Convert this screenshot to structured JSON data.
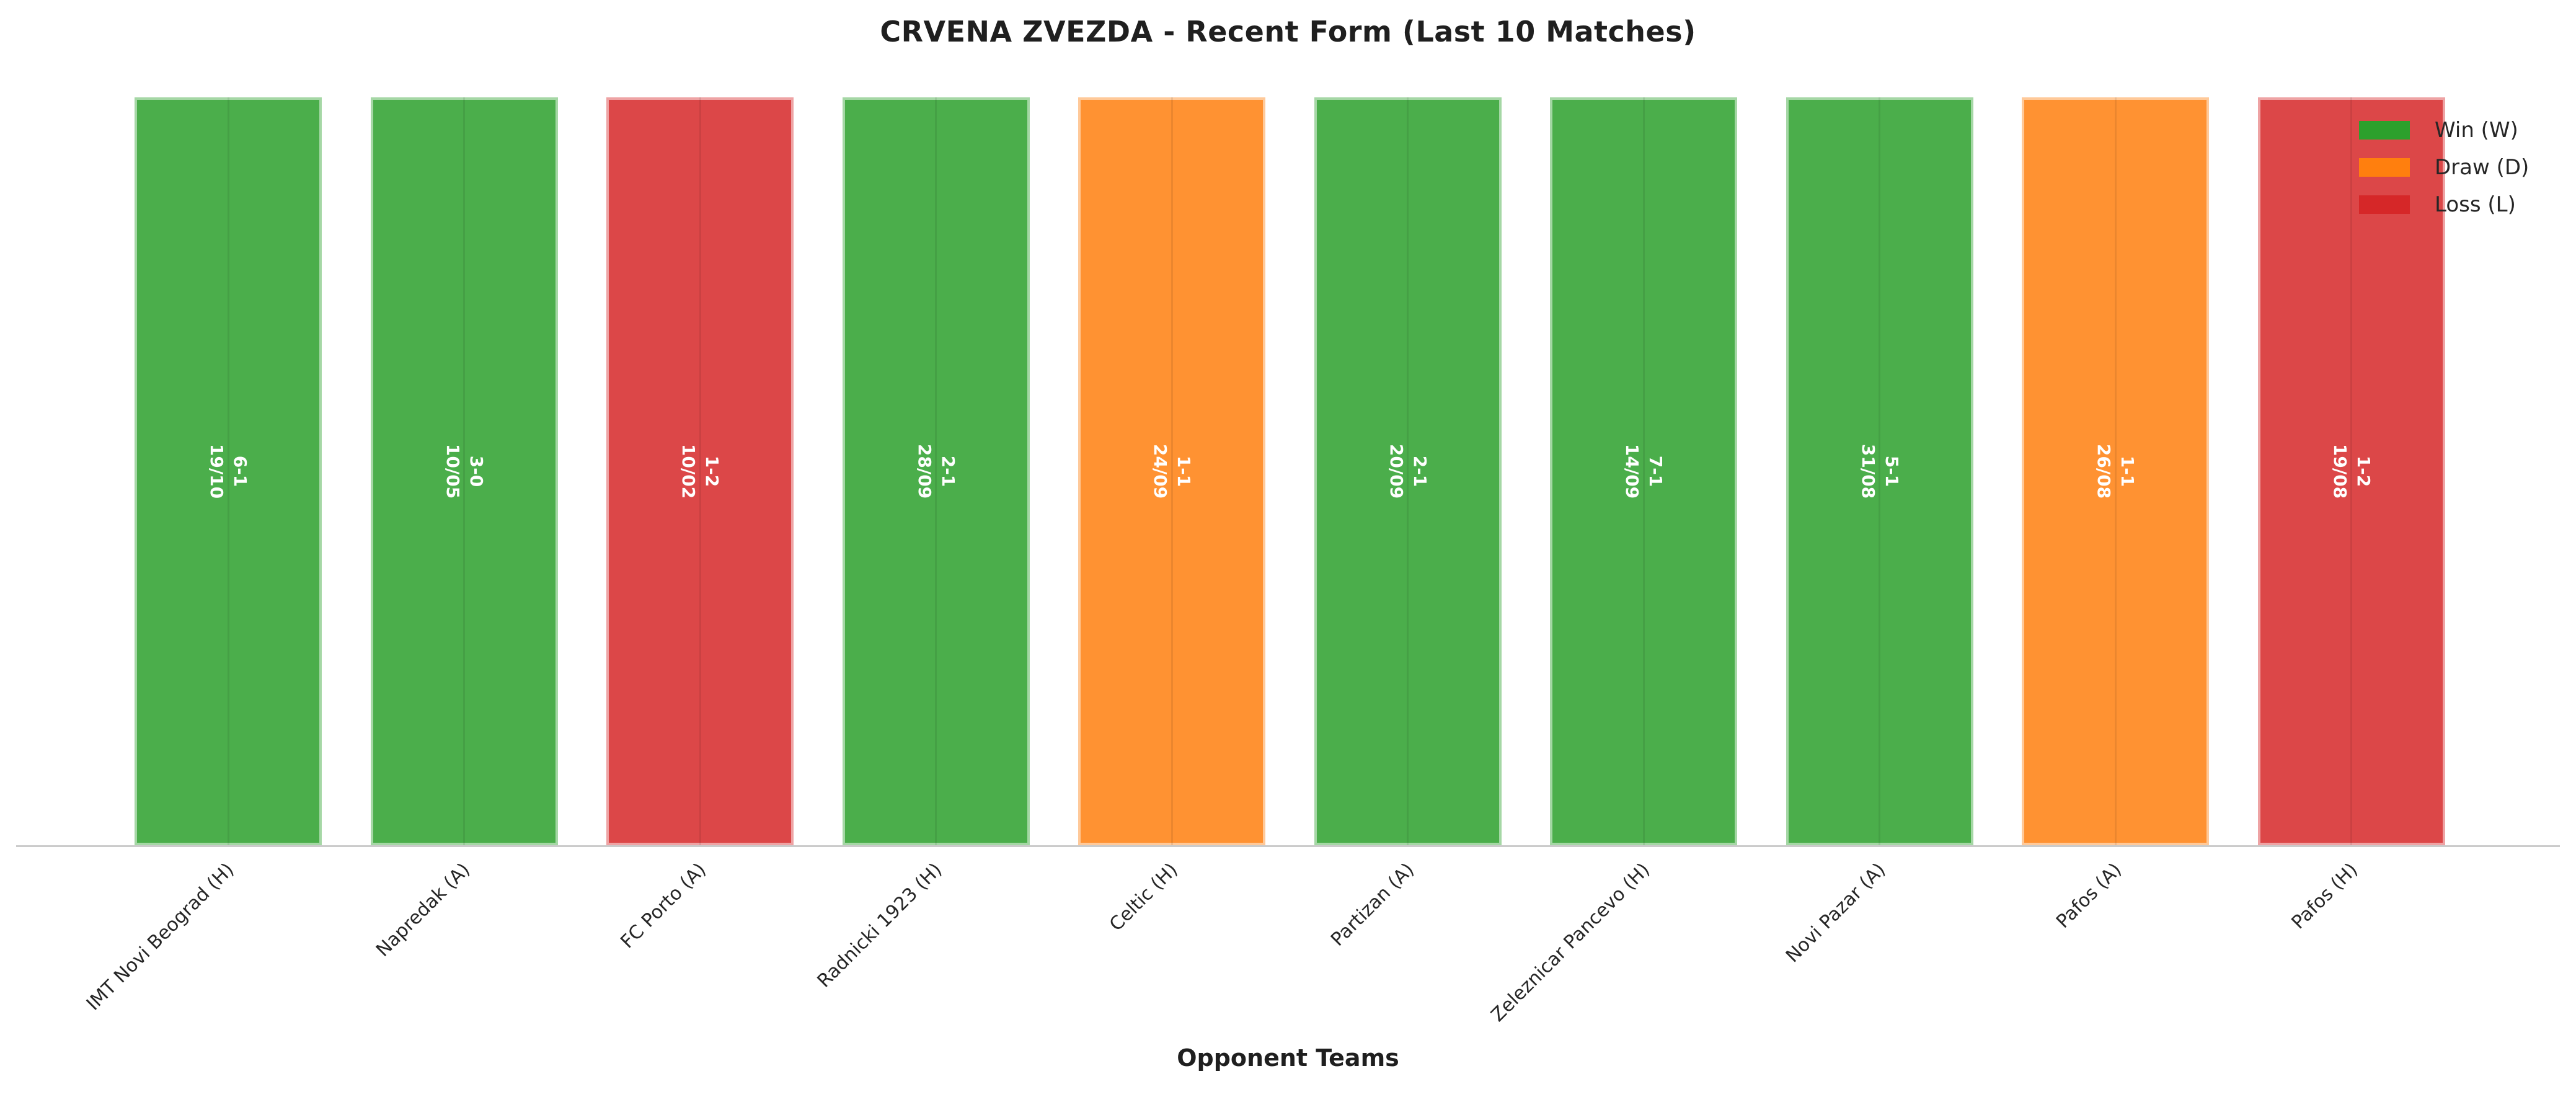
{
  "chart_data": {
    "type": "bar",
    "title": "CRVENA ZVEZDA - Recent Form (Last 10 Matches)",
    "xlabel": "Opponent Teams",
    "categories": [
      "IMT Novi Beograd (H)",
      "Napredak (A)",
      "FC Porto (A)",
      "Radnicki 1923 (H)",
      "Celtic (H)",
      "Partizan (A)",
      "Zeleznicar Pancevo (H)",
      "Novi Pazar (A)",
      "Pafos (A)",
      "Pafos (H)"
    ],
    "values": [
      1,
      1,
      1,
      1,
      1,
      1,
      1,
      1,
      1,
      1
    ],
    "matches": [
      {
        "opponent": "IMT Novi Beograd (H)",
        "date": "19/10",
        "score": "6-1",
        "result": "W"
      },
      {
        "opponent": "Napredak (A)",
        "date": "10/05",
        "score": "3-0",
        "result": "W"
      },
      {
        "opponent": "FC Porto (A)",
        "date": "10/02",
        "score": "1-2",
        "result": "L"
      },
      {
        "opponent": "Radnicki 1923 (H)",
        "date": "28/09",
        "score": "2-1",
        "result": "W"
      },
      {
        "opponent": "Celtic (H)",
        "date": "24/09",
        "score": "1-1",
        "result": "D"
      },
      {
        "opponent": "Partizan (A)",
        "date": "20/09",
        "score": "2-1",
        "result": "W"
      },
      {
        "opponent": "Zeleznicar Pancevo (H)",
        "date": "14/09",
        "score": "7-1",
        "result": "W"
      },
      {
        "opponent": "Novi Pazar (A)",
        "date": "31/08",
        "score": "5-1",
        "result": "W"
      },
      {
        "opponent": "Pafos (A)",
        "date": "26/08",
        "score": "1-1",
        "result": "D"
      },
      {
        "opponent": "Pafos (H)",
        "date": "19/08",
        "score": "1-2",
        "result": "L"
      }
    ],
    "legend": [
      {
        "label": "Win (W)",
        "key": "W",
        "color": "#2ca02c"
      },
      {
        "label": "Draw (D)",
        "key": "D",
        "color": "#ff7f0e"
      },
      {
        "label": "Loss (L)",
        "key": "L",
        "color": "#d62728"
      }
    ],
    "colors": {
      "win": "#2ca02c",
      "draw": "#ff7f0e",
      "loss": "#d62728",
      "bar_fill": {
        "W": "rgba(44,160,44,0.85)",
        "D": "rgba(255,127,14,0.85)",
        "L": "rgba(214,39,40,0.85)"
      },
      "axis_line": "#cbcbcb",
      "title_text": "#1f1f1f",
      "tick_text": "#262626",
      "bar_label_text": "#ffffff",
      "background": "#ffffff"
    },
    "layout": {
      "legend_position": "upper right",
      "legend_frame": false,
      "grid": false,
      "bar_alpha": 0.85,
      "xtick_rotation": 45,
      "bar_label_rotation": 90,
      "y_axis": "hidden",
      "ylim": [
        0,
        1
      ]
    }
  }
}
